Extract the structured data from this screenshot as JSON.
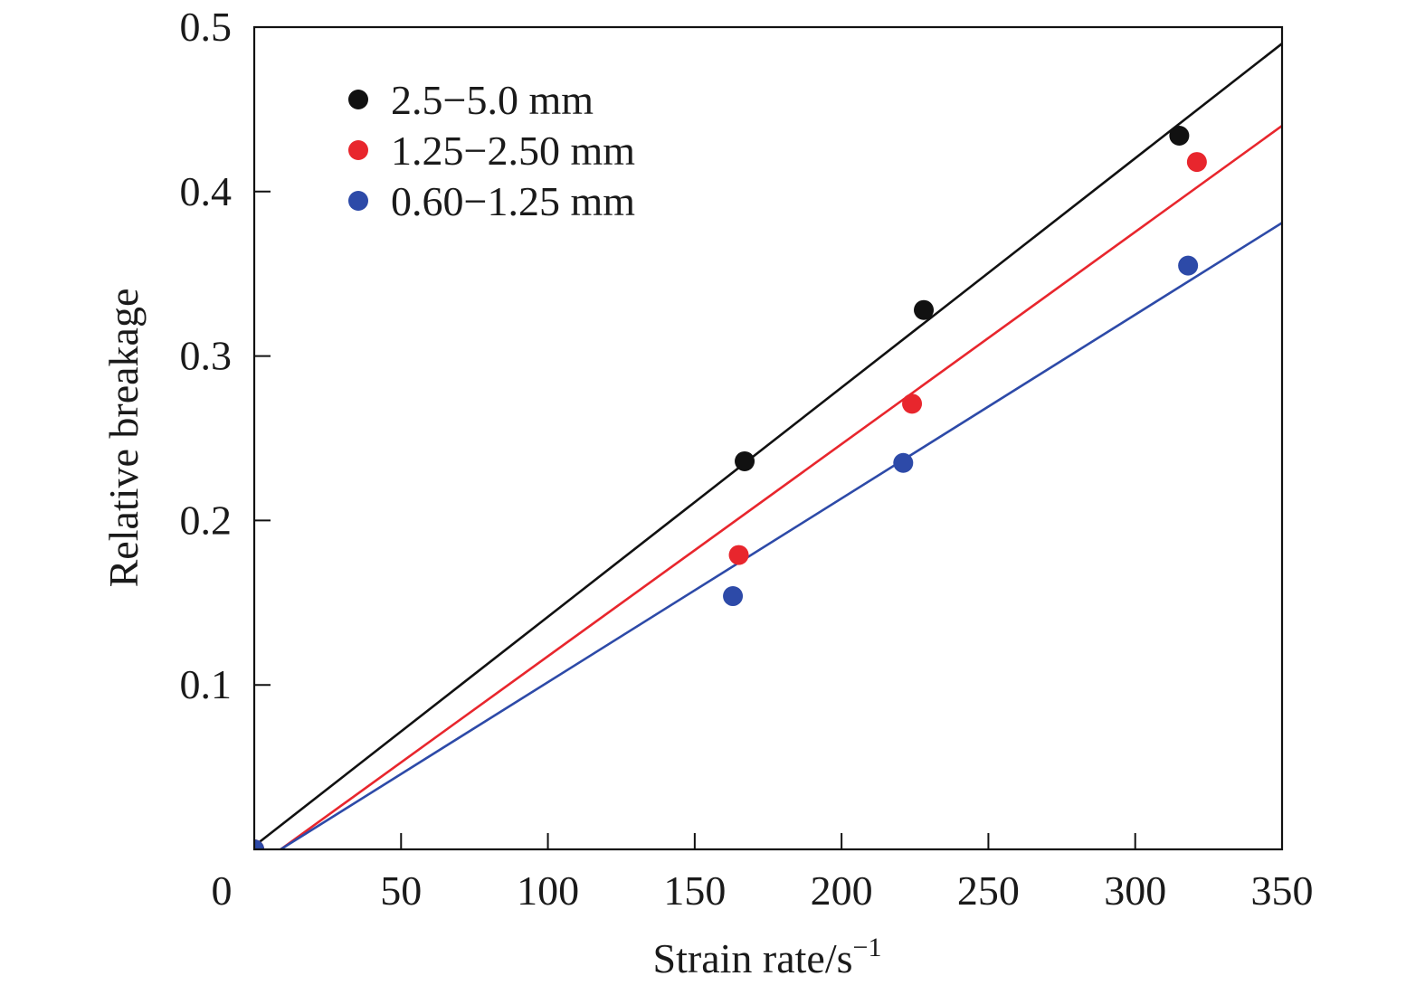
{
  "chart_data": {
    "type": "scatter",
    "title": "",
    "xlabel": "Strain rate/s",
    "xlabel_superscript": "−1",
    "ylabel": "Relative breakage",
    "xlim": [
      0,
      350
    ],
    "ylim": [
      0,
      0.5
    ],
    "x_ticks": [
      0,
      50,
      100,
      150,
      200,
      250,
      300,
      350
    ],
    "x_tick_labels": [
      "0",
      "50",
      "100",
      "150",
      "200",
      "250",
      "300",
      "350"
    ],
    "y_ticks": [
      0.1,
      0.2,
      0.3,
      0.4,
      0.5
    ],
    "y_tick_labels": [
      "0.1",
      "0.2",
      "0.3",
      "0.4",
      "0.5"
    ],
    "grid": false,
    "legend_position": "top-left",
    "series": [
      {
        "name": "2.5−5.0 mm",
        "color": "#111111",
        "marker": "circle",
        "points": [
          [
            0,
            0
          ],
          [
            167,
            0.236
          ],
          [
            228,
            0.328
          ],
          [
            315,
            0.434
          ]
        ],
        "fit_line": [
          [
            0,
            0.002
          ],
          [
            350,
            0.49
          ]
        ]
      },
      {
        "name": "1.25−2.50 mm",
        "color": "#e8262d",
        "marker": "circle",
        "points": [
          [
            0,
            0
          ],
          [
            165,
            0.179
          ],
          [
            224,
            0.271
          ],
          [
            321,
            0.418
          ]
        ],
        "fit_line": [
          [
            9,
            0
          ],
          [
            350,
            0.44
          ]
        ]
      },
      {
        "name": "0.60−1.25 mm",
        "color": "#2d4aa8",
        "marker": "circle",
        "points": [
          [
            0,
            0
          ],
          [
            163,
            0.154
          ],
          [
            221,
            0.235
          ],
          [
            318,
            0.355
          ]
        ],
        "fit_line": [
          [
            9,
            0
          ],
          [
            350,
            0.381
          ]
        ]
      }
    ]
  }
}
